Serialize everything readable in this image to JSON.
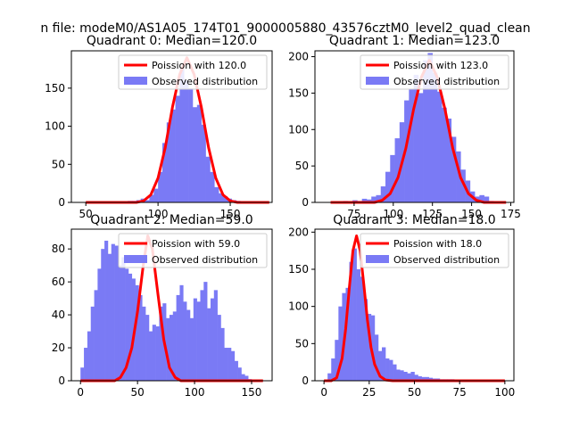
{
  "figure": {
    "suptitle": "n file: modeM0/AS1A05_174T01_9000005880_43576cztM0_level2_quad_clean",
    "observed_color": "#7a7af5",
    "model_color": "#ff0000"
  },
  "chart_data": [
    {
      "type": "bar",
      "title": "Quadrant 0: Median=120.0",
      "median": 120.0,
      "xlim": [
        40,
        179
      ],
      "ylim": [
        0,
        199
      ],
      "xticks": [
        50,
        100,
        150
      ],
      "yticks": [
        0,
        50,
        100,
        150
      ],
      "legend": {
        "placement": "upper right",
        "model": "Poission with 120.0",
        "observed": "Observed distribution"
      },
      "observed": {
        "bin_edges": [
          49,
          52,
          55,
          58,
          61,
          64,
          67,
          70,
          73,
          76,
          79,
          82,
          85,
          88,
          91,
          94,
          97,
          100,
          103,
          106,
          109,
          112,
          115,
          118,
          121,
          124,
          127,
          130,
          133,
          136,
          139,
          142,
          145,
          148,
          151,
          154,
          157,
          160,
          163,
          166,
          169,
          172
        ],
        "counts": [
          0,
          0,
          0,
          0,
          0,
          0,
          0,
          0,
          0,
          0,
          2,
          2,
          3,
          5,
          3,
          10,
          18,
          40,
          78,
          105,
          122,
          140,
          175,
          160,
          150,
          125,
          128,
          102,
          60,
          40,
          20,
          12,
          8,
          5,
          3,
          2,
          1,
          0,
          0,
          0,
          0
        ]
      },
      "model": {
        "x": [
          50,
          85,
          90,
          95,
          100,
          105,
          110,
          115,
          120,
          125,
          130,
          135,
          140,
          145,
          150,
          155,
          177
        ],
        "y": [
          0,
          0,
          2,
          10,
          32,
          72,
          125,
          168,
          190,
          168,
          125,
          72,
          32,
          10,
          2,
          0,
          0
        ]
      }
    },
    {
      "type": "bar",
      "title": "Quadrant 1: Median=123.0",
      "median": 123.0,
      "xlim": [
        50,
        177
      ],
      "ylim": [
        0,
        208
      ],
      "xticks": [
        75,
        100,
        125,
        150,
        175
      ],
      "yticks": [
        0,
        50,
        100,
        150,
        200
      ],
      "legend": {
        "placement": "upper right",
        "model": "Poission with 123.0",
        "observed": "Observed distribution"
      },
      "observed": {
        "bin_edges": [
          59,
          62,
          65,
          68,
          71,
          74,
          77,
          80,
          83,
          86,
          89,
          92,
          95,
          98,
          101,
          104,
          107,
          110,
          113,
          116,
          119,
          122,
          125,
          128,
          131,
          134,
          137,
          140,
          143,
          146,
          149,
          152,
          155,
          158,
          161,
          164,
          167,
          170,
          173
        ],
        "counts": [
          0,
          0,
          0,
          2,
          0,
          3,
          2,
          5,
          4,
          8,
          10,
          22,
          42,
          65,
          88,
          110,
          140,
          155,
          175,
          150,
          195,
          205,
          178,
          152,
          130,
          115,
          90,
          70,
          45,
          30,
          15,
          8,
          10,
          8,
          2,
          0,
          0,
          0
        ]
      },
      "model": {
        "x": [
          60,
          88,
          93,
          98,
          103,
          108,
          113,
          118,
          123,
          128,
          133,
          138,
          143,
          148,
          153,
          158,
          172
        ],
        "y": [
          0,
          0,
          3,
          12,
          34,
          74,
          128,
          172,
          195,
          172,
          128,
          74,
          34,
          12,
          3,
          0,
          0
        ]
      }
    },
    {
      "type": "bar",
      "title": "Quadrant 2: Median=59.0",
      "median": 59.0,
      "xlim": [
        -8,
        168
      ],
      "ylim": [
        0,
        92
      ],
      "xticks": [
        0,
        50,
        100,
        150
      ],
      "yticks": [
        0,
        20,
        40,
        60,
        80
      ],
      "legend": {
        "placement": "upper right",
        "model": "Poission with 59.0",
        "observed": "Observed distribution"
      },
      "observed": {
        "bin_edges": [
          0,
          3,
          6,
          9,
          12,
          15,
          18,
          21,
          24,
          27,
          30,
          33,
          36,
          39,
          42,
          45,
          48,
          51,
          54,
          57,
          60,
          63,
          66,
          69,
          72,
          75,
          78,
          81,
          84,
          87,
          90,
          93,
          96,
          99,
          102,
          105,
          108,
          111,
          114,
          117,
          120,
          123,
          126,
          129,
          132,
          135,
          138,
          141,
          144,
          147,
          150,
          153,
          156,
          159
        ],
        "counts": [
          8,
          20,
          30,
          45,
          55,
          68,
          80,
          85,
          77,
          83,
          82,
          70,
          75,
          68,
          65,
          62,
          58,
          52,
          45,
          40,
          30,
          34,
          33,
          45,
          47,
          38,
          40,
          42,
          52,
          58,
          48,
          43,
          38,
          50,
          48,
          55,
          60,
          44,
          50,
          55,
          40,
          32,
          20,
          20,
          18,
          12,
          8,
          4,
          3,
          1,
          0,
          0,
          0
        ]
      },
      "model": {
        "x": [
          0,
          30,
          35,
          40,
          45,
          50,
          55,
          59,
          63,
          68,
          73,
          78,
          83,
          88,
          160
        ],
        "y": [
          0,
          0,
          2,
          8,
          20,
          42,
          70,
          88,
          80,
          52,
          25,
          8,
          2,
          0,
          0
        ]
      }
    },
    {
      "type": "bar",
      "title": "Quadrant 3: Median=18.0",
      "median": 18.0,
      "xlim": [
        -5,
        105
      ],
      "ylim": [
        0,
        204
      ],
      "xticks": [
        0,
        25,
        50,
        75,
        100
      ],
      "yticks": [
        0,
        50,
        100,
        150,
        200
      ],
      "legend": {
        "placement": "upper right",
        "model": "Poission with 18.0",
        "observed": "Observed distribution"
      },
      "observed": {
        "bin_edges": [
          0,
          2,
          4,
          6,
          8,
          10,
          12,
          14,
          16,
          18,
          20,
          22,
          24,
          26,
          28,
          30,
          32,
          34,
          36,
          38,
          40,
          42,
          44,
          46,
          48,
          50,
          52,
          54,
          56,
          58,
          60,
          62,
          64,
          66,
          68,
          70,
          72,
          74,
          76,
          78,
          80,
          82,
          84,
          86,
          88,
          90,
          92,
          94,
          96,
          98,
          100
        ],
        "counts": [
          0,
          10,
          30,
          55,
          100,
          118,
          125,
          160,
          178,
          150,
          140,
          110,
          90,
          88,
          62,
          40,
          45,
          30,
          28,
          22,
          15,
          14,
          12,
          10,
          12,
          8,
          6,
          5,
          5,
          4,
          3,
          3,
          2,
          2,
          2,
          2,
          1,
          1,
          1,
          1,
          1,
          0,
          1,
          0,
          0,
          1,
          0,
          0,
          0,
          0
        ]
      },
      "model": {
        "x": [
          0,
          4,
          7,
          10,
          12,
          14,
          16,
          18,
          20,
          22,
          24,
          26,
          28,
          31,
          34,
          38,
          100
        ],
        "y": [
          0,
          0,
          4,
          30,
          70,
          125,
          175,
          195,
          175,
          130,
          82,
          45,
          22,
          6,
          1,
          0,
          0
        ]
      }
    }
  ]
}
